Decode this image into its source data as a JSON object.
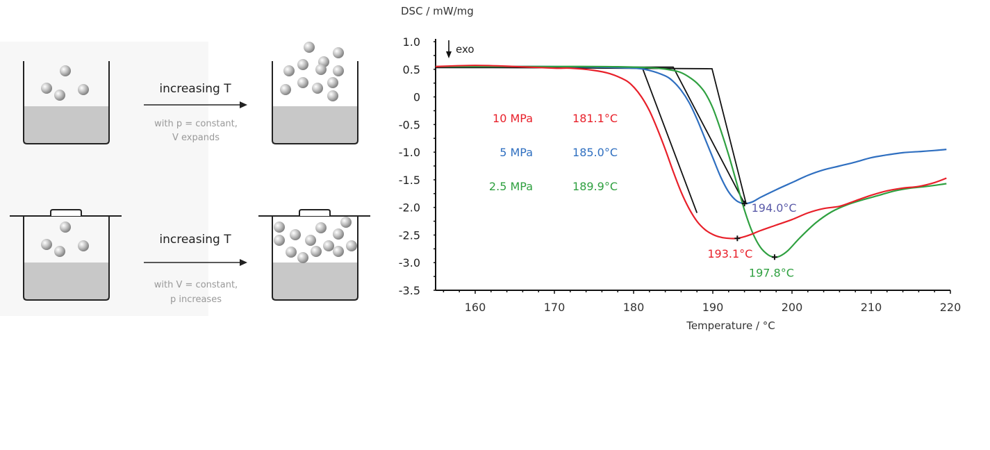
{
  "diagram": {
    "top": {
      "arrow_label": "increasing T",
      "condition_line1": "with p = constant,",
      "condition_line2": "V expands"
    },
    "bottom": {
      "arrow_label": "increasing T",
      "condition_line1": "with V = constant,",
      "condition_line2": "p increases"
    }
  },
  "chart_data": {
    "type": "line",
    "title": "",
    "ylabel": "DSC / mW/mg",
    "xlabel": "Temperature / °C",
    "xlim": [
      155,
      220
    ],
    "ylim": [
      -3.5,
      1.0
    ],
    "xticks": [
      160,
      170,
      180,
      190,
      200,
      210,
      220
    ],
    "yticks": [
      1.0,
      0.5,
      0,
      -0.5,
      -1.0,
      -1.5,
      -2.0,
      -2.5,
      -3.0,
      -3.5
    ],
    "ytick_labels": [
      "1.0",
      "0.5",
      "0",
      "-0.5",
      "-1.0",
      "-1.5",
      "-2.0",
      "-2.5",
      "-3.0",
      "-3.5"
    ],
    "exo_label": "exo",
    "colors": {
      "red": "#e8202a",
      "blue": "#2f6fc0",
      "green": "#2fa040",
      "black": "#111111",
      "peak_blue_label": "#5a5aa8"
    },
    "series": [
      {
        "name": "10 MPa",
        "onset_label": "181.1°C",
        "peak_label": "193.1°C",
        "peak": [
          193.1,
          -2.56
        ],
        "color": "#e8202a",
        "x": [
          155,
          160,
          165,
          170,
          172,
          175,
          177,
          179,
          180,
          181,
          182,
          183,
          184,
          185,
          186,
          187,
          188,
          189,
          190,
          191,
          192,
          193.1,
          194,
          195,
          196,
          198,
          200,
          202,
          204,
          206,
          208,
          210,
          212,
          214,
          216,
          218,
          219.5
        ],
        "y": [
          0.55,
          0.57,
          0.55,
          0.52,
          0.52,
          0.48,
          0.42,
          0.3,
          0.18,
          0.0,
          -0.25,
          -0.58,
          -0.95,
          -1.35,
          -1.72,
          -2.02,
          -2.25,
          -2.4,
          -2.49,
          -2.54,
          -2.56,
          -2.56,
          -2.53,
          -2.48,
          -2.42,
          -2.32,
          -2.22,
          -2.1,
          -2.02,
          -1.98,
          -1.88,
          -1.78,
          -1.7,
          -1.65,
          -1.62,
          -1.55,
          -1.47
        ]
      },
      {
        "name": "5 MPa",
        "onset_label": "185.0°C",
        "peak_label": "194.0°C",
        "peak": [
          194.0,
          -1.93
        ],
        "color": "#2f6fc0",
        "x": [
          155,
          160,
          165,
          170,
          175,
          180,
          182,
          184,
          185,
          186,
          187,
          188,
          189,
          190,
          191,
          192,
          193,
          194.0,
          195,
          196,
          198,
          200,
          202,
          204,
          206,
          208,
          210,
          212,
          214,
          216,
          218,
          219.5
        ],
        "y": [
          0.55,
          0.55,
          0.55,
          0.55,
          0.54,
          0.52,
          0.48,
          0.38,
          0.28,
          0.12,
          -0.1,
          -0.4,
          -0.75,
          -1.1,
          -1.45,
          -1.72,
          -1.88,
          -1.93,
          -1.9,
          -1.82,
          -1.68,
          -1.55,
          -1.42,
          -1.32,
          -1.25,
          -1.18,
          -1.1,
          -1.05,
          -1.01,
          -0.99,
          -0.97,
          -0.95
        ]
      },
      {
        "name": "2.5 MPa",
        "onset_label": "189.9°C",
        "peak_label": "197.8°C",
        "peak": [
          197.8,
          -2.9
        ],
        "color": "#2fa040",
        "x": [
          155,
          160,
          165,
          170,
          175,
          180,
          183,
          185,
          186,
          187,
          188,
          189,
          190,
          191,
          192,
          193,
          194,
          195,
          196,
          197,
          197.8,
          198.5,
          199.5,
          201,
          203,
          205,
          207,
          209,
          211,
          213,
          215,
          217,
          219.5
        ],
        "y": [
          0.55,
          0.55,
          0.55,
          0.55,
          0.55,
          0.54,
          0.52,
          0.48,
          0.44,
          0.36,
          0.25,
          0.08,
          -0.2,
          -0.6,
          -1.05,
          -1.55,
          -2.05,
          -2.45,
          -2.72,
          -2.86,
          -2.9,
          -2.88,
          -2.78,
          -2.55,
          -2.28,
          -2.08,
          -1.95,
          -1.86,
          -1.78,
          -1.7,
          -1.65,
          -1.62,
          -1.57
        ]
      }
    ],
    "tangent_lines": [
      {
        "name": "10 MPa onset tangent",
        "x": [
          155,
          181.1,
          188.0
        ],
        "y": [
          0.53,
          0.53,
          -2.1
        ]
      },
      {
        "name": "5 MPa onset tangent",
        "x": [
          155,
          185.0,
          194.0
        ],
        "y": [
          0.54,
          0.54,
          -1.93
        ]
      },
      {
        "name": "2.5 MPa onset tangent",
        "x": [
          155,
          189.9,
          194.2
        ],
        "y": [
          0.54,
          0.51,
          -1.93
        ]
      }
    ]
  }
}
